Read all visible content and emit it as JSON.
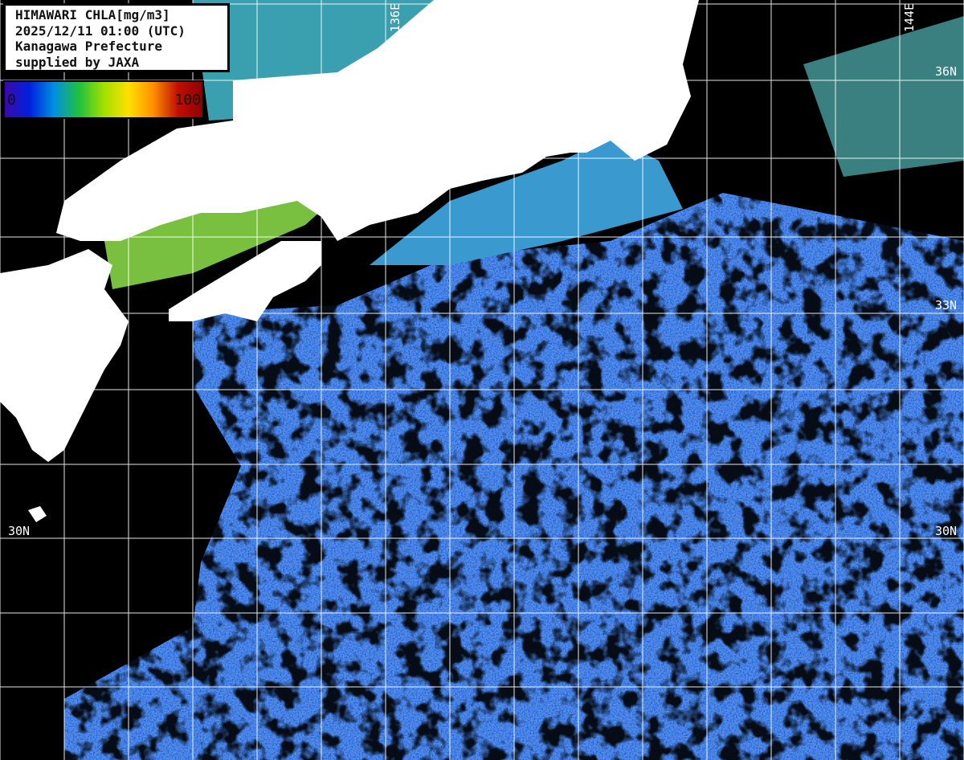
{
  "info": {
    "title": "HIMAWARI CHLA[mg/m3]",
    "datetime": "2025/12/11 01:00 (UTC)",
    "region": "Kanagawa Prefecture",
    "credit": "supplied by JAXA"
  },
  "colorbar": {
    "min": "0",
    "max": "100",
    "colors": [
      "#3a0aa8",
      "#0020e0",
      "#0090e0",
      "#20c040",
      "#a0e000",
      "#ffe000",
      "#ff9000",
      "#c01000",
      "#900000"
    ]
  },
  "grid_labels": {
    "lon_136": "136E",
    "lon_144": "144E",
    "lat_36": "36N",
    "lat_33_right": "33N",
    "lat_30_left": "30N",
    "lat_30_right": "30N"
  },
  "colors": {
    "land": "#ffffff",
    "no_data": "#000000",
    "grid": "#ffffff",
    "low_chla": "#2f6cf0"
  }
}
